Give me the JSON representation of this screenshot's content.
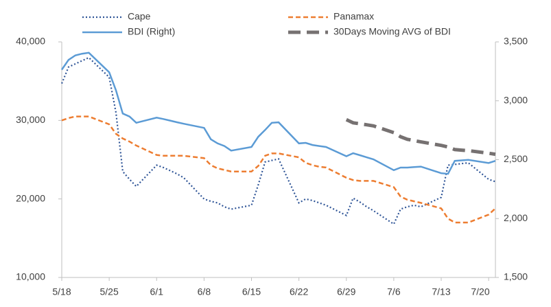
{
  "chart_data": {
    "type": "line",
    "legend": "top",
    "x": [
      "5/18",
      "5/19",
      "5/20",
      "5/21",
      "5/22",
      "5/25",
      "5/26",
      "5/27",
      "5/28",
      "5/29",
      "6/1",
      "6/2",
      "6/3",
      "6/4",
      "6/5",
      "6/8",
      "6/9",
      "6/10",
      "6/11",
      "6/12",
      "6/15",
      "6/16",
      "6/17",
      "6/18",
      "6/19",
      "6/22",
      "6/23",
      "6/24",
      "6/25",
      "6/26",
      "6/29",
      "6/30",
      "7/1",
      "7/2",
      "7/3",
      "7/6",
      "7/7",
      "7/8",
      "7/9",
      "7/10",
      "7/13",
      "7/14",
      "7/15",
      "7/16",
      "7/17",
      "7/20",
      "7/21"
    ],
    "xlim": [
      "5/18",
      "7/21"
    ],
    "xticks": [
      "5/18",
      "5/25",
      "6/1",
      "6/8",
      "6/15",
      "6/22",
      "6/29",
      "7/6",
      "7/13",
      "7/20"
    ],
    "ylim": [
      10000,
      40000
    ],
    "yticks": [
      {
        "value": 10000,
        "label": "10,000"
      },
      {
        "value": 20000,
        "label": "20,000"
      },
      {
        "value": 30000,
        "label": "30,000"
      },
      {
        "value": 40000,
        "label": "40,000"
      }
    ],
    "y2lim": [
      1500,
      3500
    ],
    "y2ticks": [
      {
        "value": 1500,
        "label": "1,500"
      },
      {
        "value": 2000,
        "label": "2,000"
      },
      {
        "value": 2500,
        "label": "2,500"
      },
      {
        "value": 3000,
        "label": "3,000"
      },
      {
        "value": 3500,
        "label": "3,500"
      }
    ],
    "series": [
      {
        "name": "Cape",
        "color": "#2f5597",
        "style": "dotted",
        "values": [
          34700,
          36800,
          37200,
          37600,
          38000,
          35500,
          31000,
          23500,
          22500,
          21600,
          24300,
          24000,
          23600,
          23200,
          22700,
          20000,
          19700,
          19500,
          19000,
          18700,
          19200,
          21800,
          24700,
          24900,
          25100,
          19500,
          20000,
          19800,
          19500,
          19200,
          17900,
          20100,
          19600,
          19000,
          18500,
          16800,
          18700,
          19000,
          19200,
          19000,
          20200,
          24300,
          24400,
          24500,
          24600,
          22500,
          22200
        ]
      },
      {
        "name": "Panamax",
        "color": "#ed7d31",
        "style": "dashed",
        "values": [
          30000,
          30300,
          30500,
          30500,
          30500,
          29500,
          28300,
          27700,
          27300,
          26800,
          25600,
          25500,
          25500,
          25500,
          25500,
          25200,
          24300,
          23900,
          23700,
          23500,
          23500,
          24200,
          25500,
          25800,
          25800,
          25300,
          24600,
          24300,
          24100,
          24000,
          22700,
          22400,
          22300,
          22300,
          22300,
          21500,
          20300,
          19900,
          19700,
          19500,
          18800,
          17500,
          17000,
          17000,
          17000,
          18000,
          18800
        ]
      },
      {
        "name": "BDI (Right)",
        "color": "#5b9bd5",
        "style": "solid",
        "axis": "y2",
        "values": [
          3264,
          3347,
          3386,
          3400,
          3408,
          3242,
          3089,
          2892,
          2866,
          2813,
          2857,
          2845,
          2832,
          2818,
          2805,
          2770,
          2673,
          2638,
          2616,
          2577,
          2608,
          2695,
          2752,
          2813,
          2817,
          2638,
          2643,
          2625,
          2616,
          2608,
          2529,
          2555,
          2538,
          2520,
          2503,
          2411,
          2433,
          2433,
          2437,
          2441,
          2385,
          2380,
          2490,
          2494,
          2498,
          2472,
          2490
        ]
      },
      {
        "name": "30Days Moving AVG of BDI",
        "color": "#767171",
        "style": "long-dashed",
        "axis": "y2",
        "values": [
          null,
          null,
          null,
          null,
          null,
          null,
          null,
          null,
          null,
          null,
          null,
          null,
          null,
          null,
          null,
          null,
          null,
          null,
          null,
          null,
          null,
          null,
          null,
          null,
          null,
          null,
          null,
          null,
          null,
          null,
          2840,
          2813,
          2805,
          2796,
          2787,
          2730,
          2695,
          2673,
          2662,
          2651,
          2621,
          2608,
          2586,
          2581,
          2577,
          2555,
          2546
        ]
      }
    ]
  }
}
